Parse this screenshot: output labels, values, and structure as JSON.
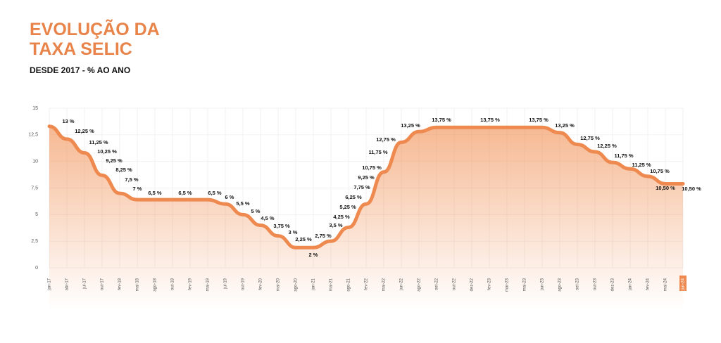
{
  "chart_data": {
    "type": "line",
    "title": [
      "EVOLUÇÃO DA",
      "TAXA SELIC"
    ],
    "subtitle": "DESDE 2017 - % AO ANO",
    "categories": [
      "jan-17",
      "abr-17",
      "jul-17",
      "out-17",
      "fev-18",
      "mai-18",
      "ago-18",
      "out-18",
      "fev-19",
      "mai-19",
      "jul-19",
      "out-19",
      "fev-20",
      "mai-20",
      "ago-20",
      "jan-21",
      "mai-21",
      "ago-21",
      "fev-22",
      "mai-22",
      "jun-22",
      "ago-22",
      "set-22",
      "out-22",
      "dez-22",
      "fev-23",
      "mar-23",
      "mai-23",
      "jun-23",
      "ago-23",
      "set-23",
      "out-23",
      "dez-23",
      "jan-24",
      "fev-24",
      "mai-24",
      "jun-24"
    ],
    "series": [
      {
        "name": "Selic",
        "color": "#ee8a4f",
        "values": [
          13.3,
          12.1,
          10.8,
          8.7,
          7.0,
          6.4,
          6.4,
          6.4,
          6.4,
          6.4,
          6.0,
          5.0,
          4.0,
          3.0,
          1.9,
          1.9,
          2.5,
          3.8,
          6.0,
          9.0,
          11.8,
          12.8,
          13.2,
          13.2,
          13.2,
          13.2,
          13.2,
          13.2,
          13.2,
          12.7,
          11.6,
          10.9,
          9.9,
          9.3,
          8.6,
          7.9,
          7.9
        ]
      }
    ],
    "annotations": [
      "13 %",
      "12,25 %",
      "11,25 %",
      "10,25 %",
      "9,25 %",
      "8,25 %",
      "7,5 %",
      "7 %",
      "6,5 %",
      "6,5 %",
      "6,5 %",
      "6 %",
      "5,5 %",
      "5 %",
      "4,5 %",
      "3,75 %",
      "3 %",
      "2,25 %",
      "2 %",
      "2,75 %",
      "3,5 %",
      "4,25 %",
      "5,25 %",
      "6,25 %",
      "7,75 %",
      "9,25 %",
      "10,75 %",
      "11,75 %",
      "12,75 %",
      "13,25 %",
      "13,75 %",
      "13,75 %",
      "13,75 %",
      "13,25 %",
      "12,75 %",
      "12,25 %",
      "11,75 %",
      "11,25 %",
      "10,75 %",
      "10,50 %",
      "10,50 %"
    ],
    "ylim": [
      0,
      15
    ],
    "yticks": [
      0,
      {
        "value": 2.5,
        "label": "2,5"
      },
      5,
      {
        "value": 7.5,
        "label": "7,5"
      },
      10,
      {
        "value": 12.5,
        "label": "12,5"
      },
      15
    ],
    "grid": true
  }
}
